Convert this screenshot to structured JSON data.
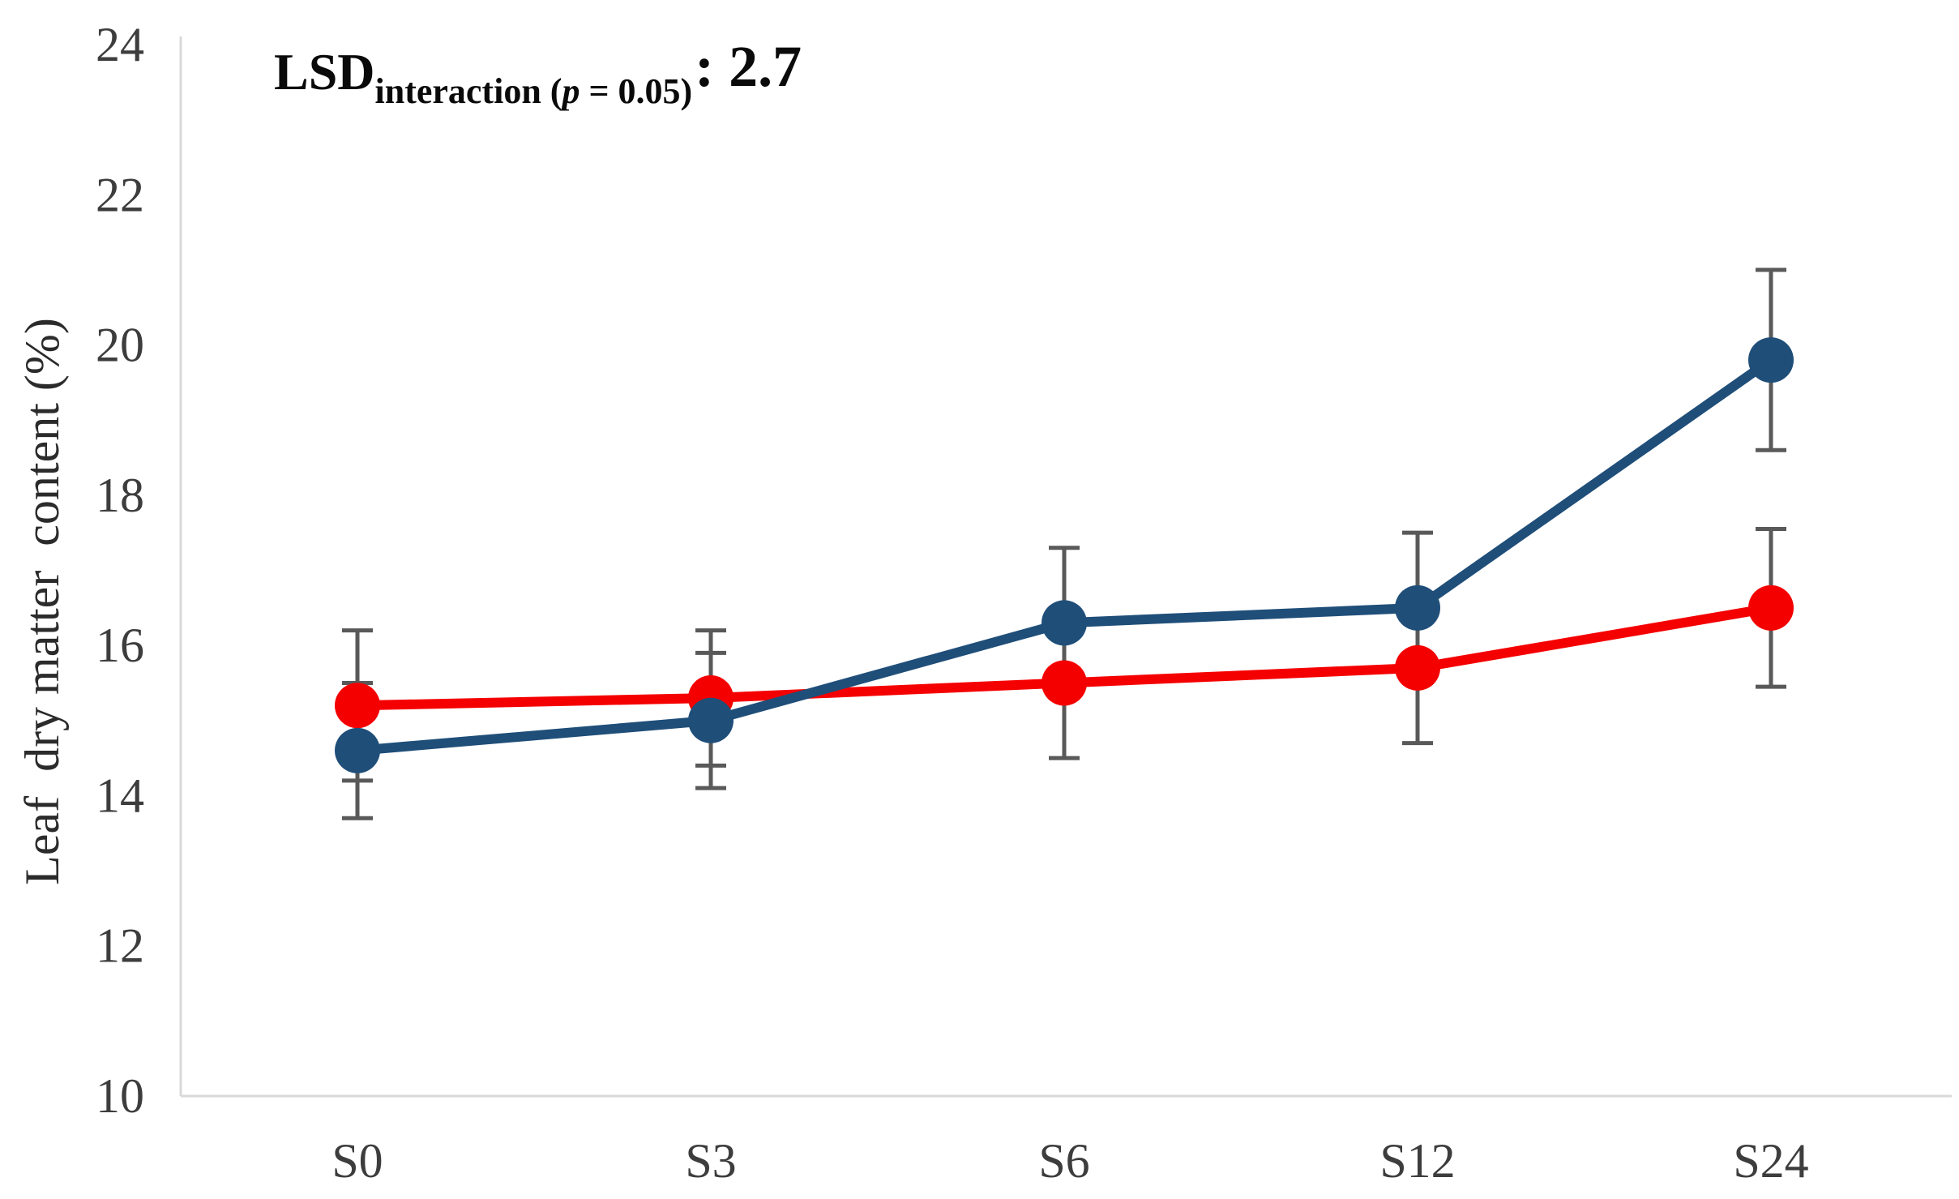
{
  "annotation": {
    "lsd": "LSD",
    "sub_pre": "interaction (",
    "sub_p": "p",
    "sub_post": " = 0.05)",
    "value_suffix": ": 2.7"
  },
  "colors": {
    "blue_series": "#1F4E79",
    "red_series": "#F50000",
    "error_bar": "#595959",
    "axis_line": "#D9D9D9",
    "tick_text": "#3D3D3D"
  },
  "chart_data": {
    "type": "line",
    "title": "",
    "categories": [
      "S0",
      "S3",
      "S6",
      "S12",
      "S24"
    ],
    "xlabel": "",
    "ylabel": "Leaf  dry matter  content (%)",
    "ylim": [
      10,
      24
    ],
    "yticks": [
      10,
      12,
      14,
      16,
      18,
      20,
      22,
      24
    ],
    "grid": false,
    "legend": "none",
    "annotation_text": "LSD interaction (p = 0.05): 2.7",
    "marker": "circle",
    "error_bars": true,
    "series": [
      {
        "id": "blue-series",
        "color": "#1F4E79",
        "values": [
          14.6,
          15.0,
          16.3,
          16.5,
          19.8
        ],
        "errors": [
          0.9,
          0.9,
          1.0,
          1.0,
          1.2
        ]
      },
      {
        "id": "red-series",
        "color": "#F50000",
        "values": [
          15.2,
          15.3,
          15.5,
          15.7,
          16.5
        ],
        "errors": [
          1.0,
          0.9,
          1.0,
          1.0,
          1.05
        ]
      }
    ]
  }
}
